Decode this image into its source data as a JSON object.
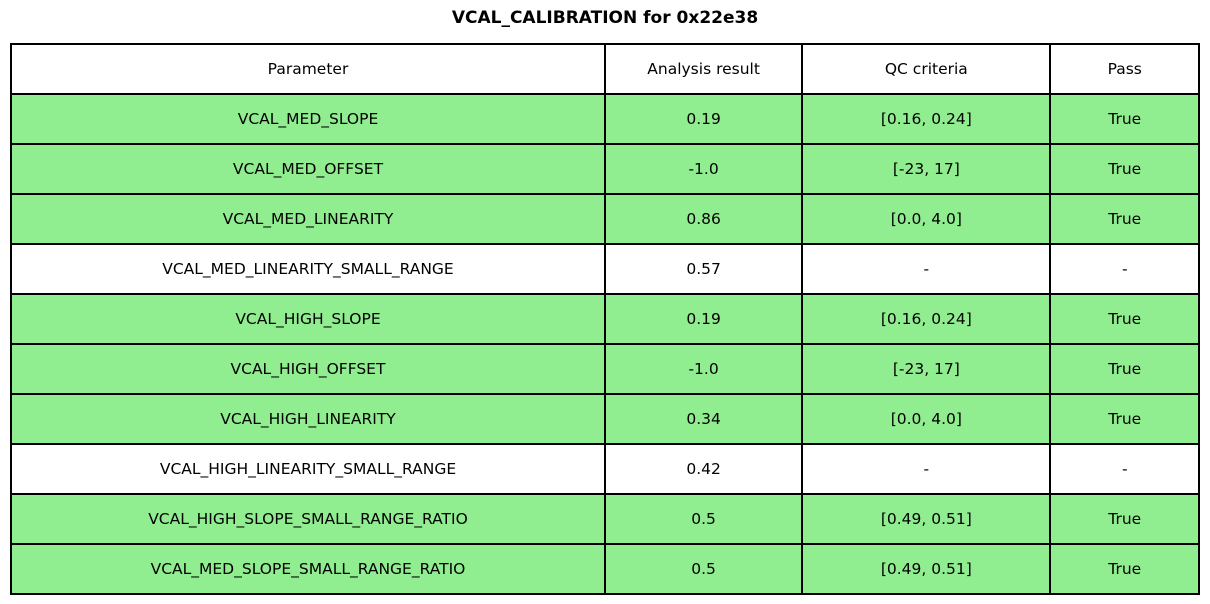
{
  "chart_data": {
    "type": "table",
    "title": "VCAL_CALIBRATION for 0x22e38",
    "columns": [
      "Parameter",
      "Analysis result",
      "QC criteria",
      "Pass"
    ],
    "rows": [
      {
        "parameter": "VCAL_MED_SLOPE",
        "analysis_result": "0.19",
        "qc_criteria": "[0.16, 0.24]",
        "pass": "True",
        "highlighted": true
      },
      {
        "parameter": "VCAL_MED_OFFSET",
        "analysis_result": "-1.0",
        "qc_criteria": "[-23, 17]",
        "pass": "True",
        "highlighted": true
      },
      {
        "parameter": "VCAL_MED_LINEARITY",
        "analysis_result": "0.86",
        "qc_criteria": "[0.0, 4.0]",
        "pass": "True",
        "highlighted": true
      },
      {
        "parameter": "VCAL_MED_LINEARITY_SMALL_RANGE",
        "analysis_result": "0.57",
        "qc_criteria": "-",
        "pass": "-",
        "highlighted": false
      },
      {
        "parameter": "VCAL_HIGH_SLOPE",
        "analysis_result": "0.19",
        "qc_criteria": "[0.16, 0.24]",
        "pass": "True",
        "highlighted": true
      },
      {
        "parameter": "VCAL_HIGH_OFFSET",
        "analysis_result": "-1.0",
        "qc_criteria": "[-23, 17]",
        "pass": "True",
        "highlighted": true
      },
      {
        "parameter": "VCAL_HIGH_LINEARITY",
        "analysis_result": "0.34",
        "qc_criteria": "[0.0, 4.0]",
        "pass": "True",
        "highlighted": true
      },
      {
        "parameter": "VCAL_HIGH_LINEARITY_SMALL_RANGE",
        "analysis_result": "0.42",
        "qc_criteria": "-",
        "pass": "-",
        "highlighted": false
      },
      {
        "parameter": "VCAL_HIGH_SLOPE_SMALL_RANGE_RATIO",
        "analysis_result": "0.5",
        "qc_criteria": "[0.49, 0.51]",
        "pass": "True",
        "highlighted": true
      },
      {
        "parameter": "VCAL_MED_SLOPE_SMALL_RANGE_RATIO",
        "analysis_result": "0.5",
        "qc_criteria": "[0.49, 0.51]",
        "pass": "True",
        "highlighted": true
      }
    ],
    "layout": {
      "legend": "none",
      "grid": "table-borders",
      "highlight_meaning": "row passes QC"
    },
    "colors": {
      "pass_row_background": "#90ee90",
      "neutral_row_background": "#ffffff",
      "border": "#000000",
      "text": "#000000"
    }
  }
}
